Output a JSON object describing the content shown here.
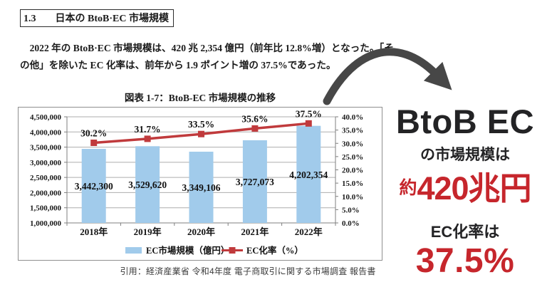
{
  "page": {
    "section_number": "1.3",
    "section_title": "日本の BtoB·EC 市場規模",
    "paragraph_line1": "　2022 年の BtoB·EC 市場規模は、420 兆 2,354 億円（前年比 12.8%増）となった。「そ",
    "paragraph_line2": "の他」を除いた EC 化率は、前年から 1.9 ポイント増の 37.5%であった。",
    "figure_title": "図表 1-7：BtoB-EC 市場規模の推移",
    "citation": "引用：経済産業省 令和4年度 電子商取引に関する市場調査 報告書"
  },
  "chart_data": {
    "type": "bar",
    "subtype": "bar+line combo",
    "title": "図表 1-7：BtoB-EC 市場規模の推移",
    "categories": [
      "2018年",
      "2019年",
      "2020年",
      "2021年",
      "2022年"
    ],
    "series": [
      {
        "name": "EC市場規模（億円）",
        "type": "bar",
        "axis": "left",
        "color": "#A1CBEB",
        "values": [
          3442300,
          3529620,
          3349106,
          3727073,
          4202354
        ]
      },
      {
        "name": "EC化率（%）",
        "type": "line",
        "axis": "right",
        "color": "#C03A3C",
        "values": [
          30.2,
          31.7,
          33.5,
          35.6,
          37.5
        ]
      }
    ],
    "bar_labels": [
      "3,442,300",
      "3,529,620",
      "3,349,106",
      "3,727,073",
      "4,202,354"
    ],
    "line_labels": [
      "30.2%",
      "31.7%",
      "33.5%",
      "35.6%",
      "37.5%"
    ],
    "left_axis": {
      "min": 1000000,
      "max": 4500000,
      "step": 500000
    },
    "right_axis": {
      "min": 0,
      "max": 40,
      "step": 5,
      "suffix": "%"
    },
    "grid": true,
    "legend_position": "bottom"
  },
  "callout": {
    "headline": "BtoB EC",
    "sub1": "の市場規模は",
    "approx_prefix": "約",
    "market_size": "420兆円",
    "sub2": "EC化率は",
    "ec_rate": "37.5%",
    "red": "#C6262C",
    "black": "#232325"
  }
}
